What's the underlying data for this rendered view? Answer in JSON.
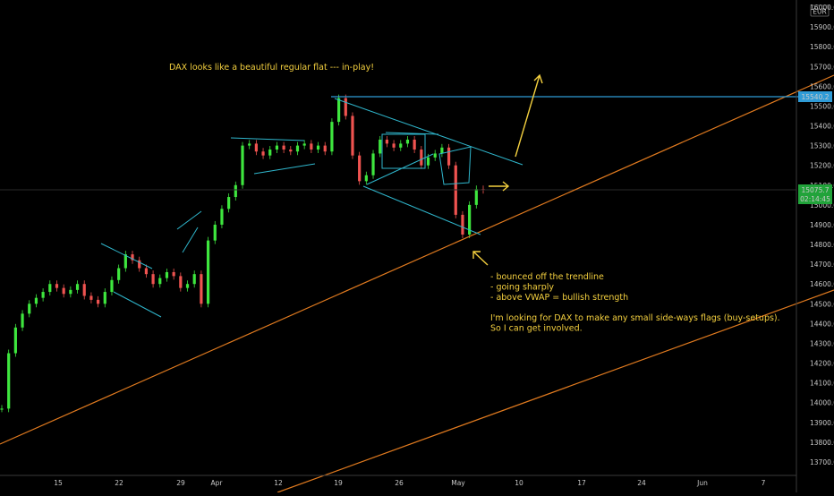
{
  "currency_label": "EUR",
  "colors": {
    "background": "#000000",
    "up_candle": "#26a69a",
    "up_candle_bright": "#3ee63e",
    "down_candle": "#ef5350",
    "trendline": "#e07a1f",
    "pattern_line": "#2fb6cc",
    "resistance_line": "#2f9bd6",
    "annotation_text": "#f4d03f",
    "arrow": "#f4d03f",
    "last_price_badge": "#21a33a",
    "resistance_badge": "#2f9bd6"
  },
  "badges": {
    "resistance_price": "15540.2",
    "last_price": "15075.7",
    "countdown": "02:14:45"
  },
  "annotations": {
    "title": "DAX looks like a beautiful regular flat --- in-play!",
    "note_lines": [
      "- bounced off the trendline",
      "- going sharply",
      "- above VWAP = bullish strength",
      "",
      "I'm looking for DAX to make any small side-ways flags (buy-setups).",
      "So I can get involved."
    ]
  },
  "chart_data": {
    "type": "line",
    "title": "",
    "instrument": "DAX",
    "ylim": [
      13650,
      16050
    ],
    "y_ticks": [
      13700.0,
      13800.0,
      13900.0,
      14000.0,
      14100.0,
      14200.0,
      14300.0,
      14400.0,
      14500.0,
      14600.0,
      14700.0,
      14800.0,
      14900.0,
      15000.0,
      15100.0,
      15200.0,
      15300.0,
      15400.0,
      15500.0,
      15600.0,
      15700.0,
      15800.0,
      15900.0,
      16000.0
    ],
    "x_ticks": [
      "15",
      "22",
      "29",
      "Apr",
      "12",
      "19",
      "26",
      "May",
      "10",
      "17",
      "24",
      "Jun",
      "7"
    ],
    "grid": false,
    "series": [
      {
        "values": [
          13970,
          14250,
          14380,
          14450,
          14500,
          14530,
          14560,
          14600,
          14580,
          14550,
          14570,
          14600,
          14540,
          14520,
          14500,
          14560,
          14620,
          14680,
          14750,
          14720,
          14680,
          14650,
          14600,
          14630,
          14660,
          14640,
          14580,
          14600,
          14650,
          14500,
          14820,
          14900,
          14980,
          15040,
          15100,
          15300,
          15310,
          15270,
          15250,
          15280,
          15300,
          15280,
          15270,
          15300,
          15310,
          15280,
          15300,
          15270,
          15420,
          15540,
          15450,
          15250,
          15120,
          15150,
          15260,
          15330,
          15310,
          15290,
          15310,
          15330,
          15280,
          15200,
          15240,
          15260,
          15290,
          15200,
          14950,
          14850,
          15000,
          15080,
          15075
        ]
      }
    ]
  }
}
